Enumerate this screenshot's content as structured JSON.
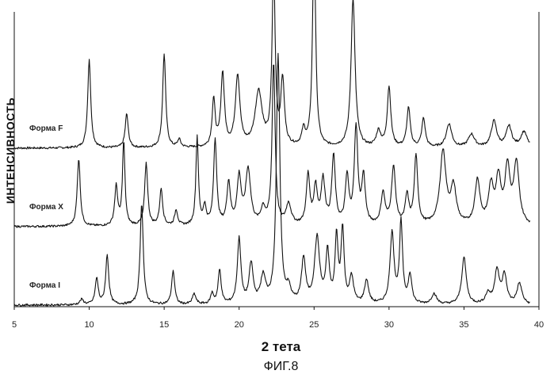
{
  "chart_data": {
    "type": "line",
    "xlabel": "2 тета",
    "ylabel": "ИНТЕНСИВНОСТЬ",
    "caption": "ФИГ.8",
    "xlim": [
      5,
      40
    ],
    "xticks": [
      5,
      10,
      15,
      20,
      25,
      30,
      35,
      40
    ],
    "grid": false,
    "series": [
      {
        "name": "Форма F",
        "baseline": 0.6,
        "peaks": [
          [
            10.0,
            0.34,
            0.12
          ],
          [
            12.5,
            0.13,
            0.12
          ],
          [
            15.0,
            0.36,
            0.12
          ],
          [
            16.0,
            0.03,
            0.12
          ],
          [
            18.3,
            0.18,
            0.12
          ],
          [
            18.9,
            0.28,
            0.14
          ],
          [
            19.9,
            0.27,
            0.18
          ],
          [
            21.3,
            0.21,
            0.28
          ],
          [
            22.3,
            0.68,
            0.12
          ],
          [
            22.9,
            0.25,
            0.14
          ],
          [
            24.3,
            0.06,
            0.14
          ],
          [
            25.0,
            0.82,
            0.12
          ],
          [
            27.6,
            0.57,
            0.16
          ],
          [
            29.3,
            0.06,
            0.18
          ],
          [
            30.0,
            0.23,
            0.14
          ],
          [
            31.3,
            0.15,
            0.14
          ],
          [
            32.3,
            0.11,
            0.14
          ],
          [
            34.0,
            0.09,
            0.22
          ],
          [
            35.5,
            0.05,
            0.25
          ],
          [
            37.0,
            0.1,
            0.22
          ],
          [
            38.0,
            0.08,
            0.22
          ],
          [
            39.0,
            0.06,
            0.25
          ]
        ]
      },
      {
        "name": "Форма X",
        "baseline": 0.3,
        "peaks": [
          [
            9.3,
            0.26,
            0.12
          ],
          [
            11.8,
            0.15,
            0.12
          ],
          [
            12.3,
            0.32,
            0.1
          ],
          [
            13.8,
            0.24,
            0.12
          ],
          [
            14.8,
            0.14,
            0.12
          ],
          [
            15.8,
            0.06,
            0.12
          ],
          [
            17.2,
            0.34,
            0.1
          ],
          [
            17.7,
            0.07,
            0.12
          ],
          [
            18.4,
            0.33,
            0.12
          ],
          [
            19.3,
            0.16,
            0.14
          ],
          [
            20.0,
            0.18,
            0.16
          ],
          [
            20.6,
            0.21,
            0.2
          ],
          [
            21.6,
            0.06,
            0.18
          ],
          [
            22.3,
            0.62,
            0.12
          ],
          [
            23.3,
            0.08,
            0.2
          ],
          [
            24.6,
            0.19,
            0.14
          ],
          [
            25.1,
            0.14,
            0.14
          ],
          [
            25.6,
            0.17,
            0.16
          ],
          [
            26.3,
            0.26,
            0.14
          ],
          [
            27.2,
            0.18,
            0.14
          ],
          [
            27.8,
            0.37,
            0.14
          ],
          [
            28.3,
            0.18,
            0.14
          ],
          [
            29.6,
            0.12,
            0.16
          ],
          [
            30.3,
            0.22,
            0.16
          ],
          [
            31.2,
            0.11,
            0.14
          ],
          [
            31.8,
            0.26,
            0.14
          ],
          [
            33.6,
            0.28,
            0.24
          ],
          [
            34.3,
            0.14,
            0.22
          ],
          [
            35.9,
            0.17,
            0.2
          ],
          [
            36.8,
            0.14,
            0.2
          ],
          [
            37.3,
            0.17,
            0.2
          ],
          [
            37.9,
            0.21,
            0.2
          ],
          [
            38.5,
            0.23,
            0.22
          ]
        ]
      },
      {
        "name": "Форма I",
        "baseline": 0.0,
        "peaks": [
          [
            9.5,
            0.02,
            0.15
          ],
          [
            10.5,
            0.1,
            0.12
          ],
          [
            11.2,
            0.19,
            0.12
          ],
          [
            13.5,
            0.39,
            0.12
          ],
          [
            15.6,
            0.13,
            0.12
          ],
          [
            17.0,
            0.04,
            0.14
          ],
          [
            18.2,
            0.04,
            0.12
          ],
          [
            18.7,
            0.13,
            0.12
          ],
          [
            20.0,
            0.25,
            0.14
          ],
          [
            20.8,
            0.15,
            0.16
          ],
          [
            21.6,
            0.1,
            0.2
          ],
          [
            22.6,
            0.95,
            0.14
          ],
          [
            23.3,
            0.05,
            0.18
          ],
          [
            24.3,
            0.17,
            0.16
          ],
          [
            25.2,
            0.25,
            0.2
          ],
          [
            25.9,
            0.19,
            0.14
          ],
          [
            26.5,
            0.25,
            0.12
          ],
          [
            26.9,
            0.28,
            0.12
          ],
          [
            27.5,
            0.1,
            0.16
          ],
          [
            28.5,
            0.09,
            0.16
          ],
          [
            30.2,
            0.27,
            0.16
          ],
          [
            30.8,
            0.31,
            0.12
          ],
          [
            31.4,
            0.11,
            0.14
          ],
          [
            33.0,
            0.04,
            0.2
          ],
          [
            35.0,
            0.18,
            0.18
          ],
          [
            36.6,
            0.04,
            0.2
          ],
          [
            37.2,
            0.13,
            0.18
          ],
          [
            37.7,
            0.11,
            0.18
          ],
          [
            38.7,
            0.08,
            0.2
          ]
        ]
      }
    ]
  }
}
